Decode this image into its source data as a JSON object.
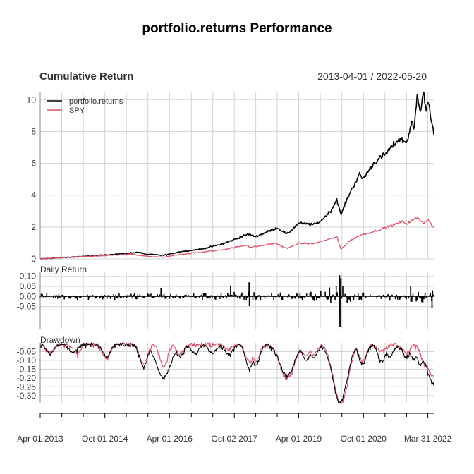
{
  "title": "portfolio.returns Performance",
  "chart_data": {
    "type": "line",
    "panels": [
      {
        "name": "Cumulative Return",
        "ylim": [
          0,
          10.5
        ],
        "yticks": [
          0,
          2,
          4,
          6,
          8,
          10
        ],
        "ytick_labels": [
          "0",
          "2",
          "4",
          "6",
          "8",
          "10"
        ],
        "legend_position": "top-left",
        "series": [
          {
            "name": "portfolio.returns",
            "color": "#000000",
            "points": [
              [
                "2013-04-01",
                0.0
              ],
              [
                "2013-10-01",
                0.08
              ],
              [
                "2014-04-01",
                0.15
              ],
              [
                "2014-10-01",
                0.24
              ],
              [
                "2015-04-01",
                0.34
              ],
              [
                "2015-07-15",
                0.42
              ],
              [
                "2015-09-01",
                0.3
              ],
              [
                "2016-02-11",
                0.22
              ],
              [
                "2016-07-01",
                0.45
              ],
              [
                "2017-01-01",
                0.62
              ],
              [
                "2017-07-01",
                0.95
              ],
              [
                "2018-01-26",
                1.55
              ],
              [
                "2018-04-01",
                1.4
              ],
              [
                "2018-10-01",
                1.95
              ],
              [
                "2018-12-24",
                1.55
              ],
              [
                "2019-04-01",
                2.25
              ],
              [
                "2019-08-05",
                2.15
              ],
              [
                "2019-10-01",
                2.35
              ],
              [
                "2020-01-02",
                3.05
              ],
              [
                "2020-02-19",
                3.75
              ],
              [
                "2020-03-23",
                2.75
              ],
              [
                "2020-06-01",
                4.05
              ],
              [
                "2020-09-02",
                5.35
              ],
              [
                "2020-09-23",
                5.0
              ],
              [
                "2021-01-01",
                6.05
              ],
              [
                "2021-04-01",
                6.55
              ],
              [
                "2021-08-01",
                7.55
              ],
              [
                "2021-10-01",
                7.3
              ],
              [
                "2021-11-19",
                8.65
              ],
              [
                "2021-12-01",
                7.9
              ],
              [
                "2022-01-01",
                10.45
              ],
              [
                "2022-01-27",
                9.25
              ],
              [
                "2022-02-20",
                10.55
              ],
              [
                "2022-03-15",
                9.3
              ],
              [
                "2022-04-01",
                9.8
              ],
              [
                "2022-05-20",
                8.0
              ]
            ]
          },
          {
            "name": "SPY",
            "color": "#DF536B",
            "points": [
              [
                "2013-04-01",
                0.0
              ],
              [
                "2013-10-01",
                0.08
              ],
              [
                "2014-04-01",
                0.14
              ],
              [
                "2014-10-01",
                0.2
              ],
              [
                "2015-05-01",
                0.3
              ],
              [
                "2015-08-25",
                0.18
              ],
              [
                "2016-02-11",
                0.1
              ],
              [
                "2016-07-01",
                0.28
              ],
              [
                "2017-01-01",
                0.42
              ],
              [
                "2017-07-01",
                0.58
              ],
              [
                "2018-01-26",
                0.88
              ],
              [
                "2018-02-08",
                0.72
              ],
              [
                "2018-09-20",
                0.98
              ],
              [
                "2018-12-24",
                0.65
              ],
              [
                "2019-04-01",
                0.98
              ],
              [
                "2019-08-05",
                0.95
              ],
              [
                "2020-02-19",
                1.38
              ],
              [
                "2020-03-23",
                0.6
              ],
              [
                "2020-06-01",
                1.1
              ],
              [
                "2020-09-02",
                1.48
              ],
              [
                "2021-01-01",
                1.72
              ],
              [
                "2021-06-01",
                2.1
              ],
              [
                "2021-09-01",
                2.35
              ],
              [
                "2021-10-01",
                2.2
              ],
              [
                "2022-01-03",
                2.6
              ],
              [
                "2022-02-23",
                2.25
              ],
              [
                "2022-03-29",
                2.5
              ],
              [
                "2022-05-20",
                1.95
              ]
            ]
          }
        ]
      },
      {
        "name": "Daily Return",
        "ylim": [
          -0.16,
          0.12
        ],
        "yticks": [
          0.1,
          0.05,
          0.0,
          -0.05
        ],
        "ytick_labels": [
          "0.10",
          "0.05",
          "0.00",
          "-0.05"
        ],
        "series_name": "portfolio.returns",
        "volatility_regimes": [
          [
            "2013-04-01",
            0.018
          ],
          [
            "2015-08-01",
            0.026
          ],
          [
            "2016-03-01",
            0.02
          ],
          [
            "2018-02-01",
            0.03
          ],
          [
            "2018-10-01",
            0.032
          ],
          [
            "2019-03-01",
            0.022
          ],
          [
            "2020-02-20",
            0.065
          ],
          [
            "2020-05-01",
            0.04
          ],
          [
            "2020-08-01",
            0.03
          ],
          [
            "2021-01-01",
            0.025
          ],
          [
            "2022-01-01",
            0.038
          ],
          [
            "2022-05-20",
            0.038
          ]
        ],
        "extremes": [
          [
            "2016-01-20",
            0.04
          ],
          [
            "2017-09-01",
            0.055
          ],
          [
            "2018-02-05",
            0.07
          ],
          [
            "2018-02-08",
            -0.048
          ],
          [
            "2020-03-09",
            -0.085
          ],
          [
            "2020-03-13",
            0.105
          ],
          [
            "2020-03-16",
            -0.15
          ],
          [
            "2020-03-24",
            0.09
          ],
          [
            "2021-11-05",
            0.05
          ],
          [
            "2022-05-05",
            -0.055
          ]
        ]
      },
      {
        "name": "Drawdown",
        "ylim": [
          -0.345,
          0.0
        ],
        "yticks": [
          -0.05,
          -0.1,
          -0.15,
          -0.2,
          -0.25,
          -0.3
        ],
        "ytick_labels": [
          "-0.05",
          "-0.10",
          "-0.15",
          "-0.20",
          "-0.25",
          "-0.30"
        ],
        "series": [
          {
            "name": "portfolio.returns",
            "color": "#000000",
            "troughs": [
              [
                "2013-06-24",
                -0.055
              ],
              [
                "2014-01-01",
                -0.05
              ],
              [
                "2014-10-15",
                -0.065
              ],
              [
                "2015-08-25",
                -0.13
              ],
              [
                "2016-02-11",
                -0.19
              ],
              [
                "2016-06-27",
                -0.07
              ],
              [
                "2016-11-04",
                -0.055
              ],
              [
                "2017-03-27",
                -0.05
              ],
              [
                "2017-08-18",
                -0.06
              ],
              [
                "2018-02-08",
                -0.14
              ],
              [
                "2018-04-02",
                -0.12
              ],
              [
                "2018-12-24",
                -0.18
              ],
              [
                "2019-06-03",
                -0.09
              ],
              [
                "2019-08-05",
                -0.08
              ],
              [
                "2020-03-16",
                -0.33
              ],
              [
                "2020-09-23",
                -0.11
              ],
              [
                "2021-03-04",
                -0.1
              ],
              [
                "2021-05-12",
                -0.07
              ],
              [
                "2021-09-30",
                -0.07
              ],
              [
                "2021-12-01",
                -0.085
              ],
              [
                "2022-01-27",
                -0.12
              ],
              [
                "2022-03-08",
                -0.115
              ],
              [
                "2022-05-20",
                -0.225
              ]
            ]
          },
          {
            "name": "SPY",
            "color": "#DF536B",
            "troughs": [
              [
                "2013-06-24",
                -0.045
              ],
              [
                "2014-02-03",
                -0.055
              ],
              [
                "2014-10-15",
                -0.075
              ],
              [
                "2015-08-25",
                -0.115
              ],
              [
                "2016-02-11",
                -0.13
              ],
              [
                "2016-06-27",
                -0.05
              ],
              [
                "2017-08-18",
                -0.025
              ],
              [
                "2018-02-08",
                -0.1
              ],
              [
                "2018-04-02",
                -0.095
              ],
              [
                "2018-12-24",
                -0.195
              ],
              [
                "2019-06-03",
                -0.065
              ],
              [
                "2019-08-05",
                -0.06
              ],
              [
                "2020-03-23",
                -0.34
              ],
              [
                "2020-09-23",
                -0.095
              ],
              [
                "2021-03-04",
                -0.04
              ],
              [
                "2021-09-30",
                -0.05
              ],
              [
                "2022-03-08",
                -0.125
              ],
              [
                "2022-05-20",
                -0.185
              ]
            ]
          }
        ]
      }
    ],
    "x": {
      "start": "2013-04-01",
      "end": "2022-05-20",
      "range_label": "2013-04-01 / 2022-05-20",
      "labeled_ticks": [
        "Apr 01 2013",
        "Oct 01 2014",
        "Apr 01 2016",
        "Oct 02 2017",
        "Apr 01 2019",
        "Oct 01 2020",
        "Mar 31 2022"
      ],
      "minor_ticks": [
        "Oct 01 2013",
        "Apr 01 2014",
        "Apr 01 2015",
        "Oct 01 2015",
        "Oct 03 2016",
        "Apr 03 2017",
        "Apr 02 2018",
        "Oct 01 2018",
        "Oct 01 2019",
        "Apr 01 2020",
        "Apr 01 2021",
        "Oct 01 2021"
      ]
    },
    "grid": true
  }
}
